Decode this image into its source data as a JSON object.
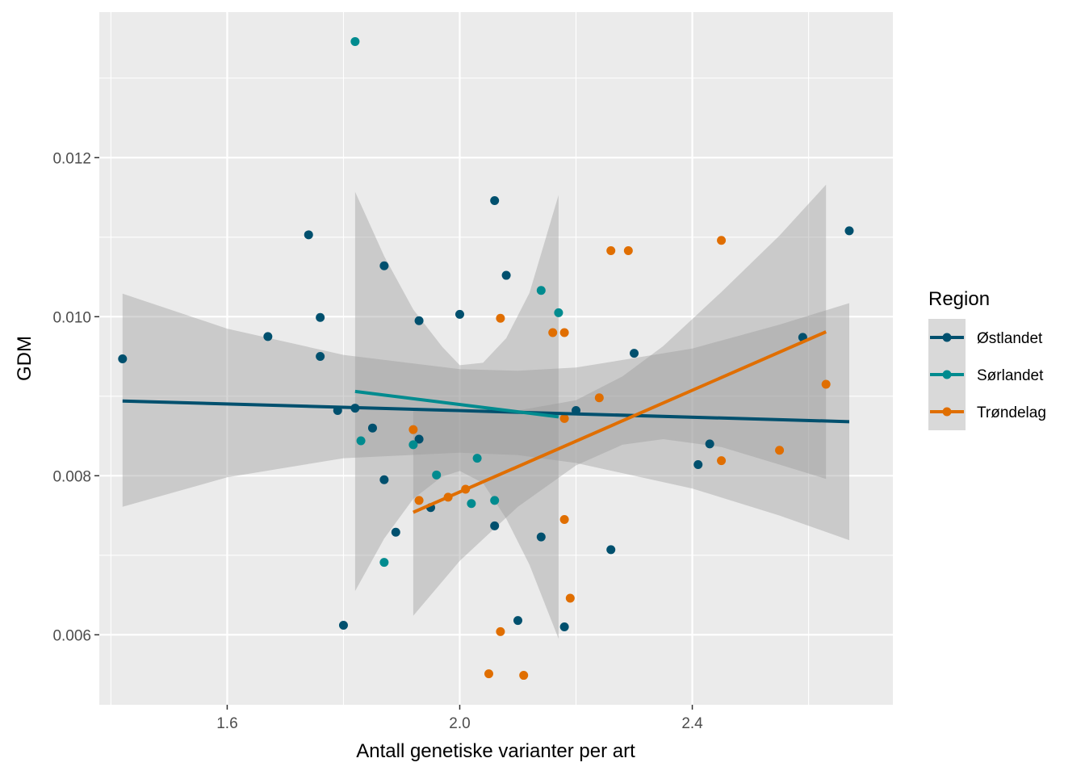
{
  "chart_data": {
    "type": "scatter",
    "title": "",
    "xlabel": "Antall genetiske varianter per art",
    "ylabel": "GDM",
    "xlim": [
      1.38,
      2.745
    ],
    "ylim": [
      0.00512,
      0.01383
    ],
    "x_ticks": [
      1.6,
      2.0,
      2.4
    ],
    "x_tick_labels": [
      "1.6",
      "2.0",
      "2.4"
    ],
    "y_ticks": [
      0.006,
      0.008,
      0.01,
      0.012
    ],
    "y_tick_labels": [
      "0.006",
      "0.008",
      "0.010",
      "0.012"
    ],
    "grid": true,
    "legend": {
      "title": "Region",
      "position": "right"
    },
    "series": [
      {
        "name": "Østlandet",
        "color": "#00506E",
        "points": [
          [
            1.42,
            0.00947
          ],
          [
            1.67,
            0.00975
          ],
          [
            1.74,
            0.01103
          ],
          [
            1.76,
            0.00999
          ],
          [
            1.76,
            0.0095
          ],
          [
            1.79,
            0.00882
          ],
          [
            1.8,
            0.00612
          ],
          [
            1.82,
            0.00885
          ],
          [
            1.85,
            0.0086
          ],
          [
            1.87,
            0.01064
          ],
          [
            1.87,
            0.00795
          ],
          [
            1.89,
            0.00729
          ],
          [
            1.93,
            0.00995
          ],
          [
            1.93,
            0.00846
          ],
          [
            1.95,
            0.0076
          ],
          [
            2.0,
            0.01003
          ],
          [
            2.06,
            0.01146
          ],
          [
            2.06,
            0.00737
          ],
          [
            2.08,
            0.01052
          ],
          [
            2.1,
            0.00618
          ],
          [
            2.14,
            0.00723
          ],
          [
            2.18,
            0.0061
          ],
          [
            2.2,
            0.00882
          ],
          [
            2.26,
            0.00707
          ],
          [
            2.3,
            0.00954
          ],
          [
            2.41,
            0.00814
          ],
          [
            2.43,
            0.0084
          ],
          [
            2.59,
            0.00974
          ],
          [
            2.67,
            0.01108
          ]
        ],
        "fit": {
          "x": [
            1.42,
            2.67
          ],
          "y": [
            0.00894,
            0.00868
          ]
        },
        "ci": {
          "x": [
            1.42,
            1.6,
            1.8,
            2.0,
            2.1,
            2.2,
            2.4,
            2.55,
            2.67
          ],
          "lower": [
            0.00761,
            0.00798,
            0.00822,
            0.00829,
            0.00826,
            0.00816,
            0.00784,
            0.0075,
            0.00719
          ],
          "upper": [
            0.01029,
            0.00985,
            0.00952,
            0.00934,
            0.00932,
            0.00936,
            0.0096,
            0.0099,
            0.01017
          ]
        }
      },
      {
        "name": "Sørlandet",
        "color": "#008B8F",
        "points": [
          [
            1.82,
            0.01346
          ],
          [
            1.83,
            0.00844
          ],
          [
            1.87,
            0.00691
          ],
          [
            1.92,
            0.00839
          ],
          [
            1.96,
            0.00801
          ],
          [
            2.03,
            0.00822
          ],
          [
            2.02,
            0.00765
          ],
          [
            2.06,
            0.00769
          ],
          [
            2.14,
            0.01033
          ],
          [
            2.17,
            0.01005
          ]
        ],
        "fit": {
          "x": [
            1.82,
            2.17
          ],
          "y": [
            0.00906,
            0.00874
          ]
        },
        "ci": {
          "x": [
            1.82,
            1.87,
            1.92,
            1.97,
            2.0,
            2.04,
            2.08,
            2.12,
            2.17
          ],
          "lower": [
            0.00655,
            0.00721,
            0.00771,
            0.00799,
            0.00806,
            0.00791,
            0.00746,
            0.00688,
            0.00595
          ],
          "upper": [
            0.01157,
            0.01076,
            0.01009,
            0.00962,
            0.00939,
            0.00942,
            0.00973,
            0.0103,
            0.01153
          ]
        }
      },
      {
        "name": "Trøndelag",
        "color": "#E06E00",
        "points": [
          [
            1.92,
            0.00858
          ],
          [
            1.93,
            0.00769
          ],
          [
            1.98,
            0.00773
          ],
          [
            2.01,
            0.00783
          ],
          [
            2.05,
            0.00551
          ],
          [
            2.07,
            0.00604
          ],
          [
            2.07,
            0.00998
          ],
          [
            2.11,
            0.00549
          ],
          [
            2.16,
            0.0098
          ],
          [
            2.18,
            0.0098
          ],
          [
            2.18,
            0.00872
          ],
          [
            2.18,
            0.00745
          ],
          [
            2.19,
            0.00646
          ],
          [
            2.24,
            0.00898
          ],
          [
            2.26,
            0.01083
          ],
          [
            2.29,
            0.01083
          ],
          [
            2.45,
            0.01096
          ],
          [
            2.45,
            0.00819
          ],
          [
            2.55,
            0.00832
          ],
          [
            2.63,
            0.00915
          ]
        ],
        "fit": {
          "x": [
            1.92,
            2.63
          ],
          "y": [
            0.00754,
            0.00981
          ]
        },
        "ci": {
          "x": [
            1.92,
            2.0,
            2.1,
            2.2,
            2.28,
            2.35,
            2.45,
            2.55,
            2.63
          ],
          "lower": [
            0.00624,
            0.00693,
            0.00761,
            0.00813,
            0.00839,
            0.00846,
            0.00836,
            0.00814,
            0.00796
          ],
          "upper": [
            0.00884,
            0.00879,
            0.00882,
            0.00895,
            0.00925,
            0.00963,
            0.01031,
            0.01102,
            0.01166
          ]
        }
      }
    ]
  }
}
